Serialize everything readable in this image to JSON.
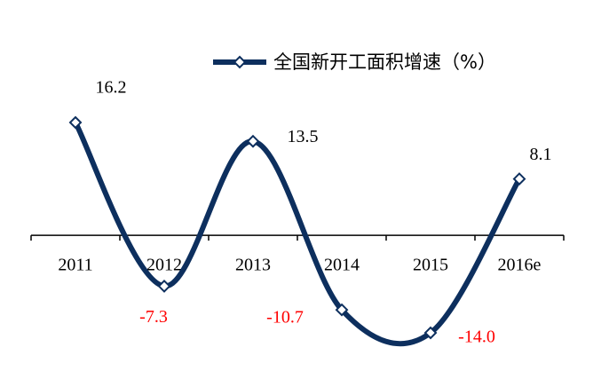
{
  "chart_data": {
    "type": "line",
    "categories": [
      "2011",
      "2012",
      "2013",
      "2014",
      "2015",
      "2016e"
    ],
    "series": [
      {
        "name": "全国新开工面积增速（%）",
        "color": "#0d2f5e",
        "values": [
          16.2,
          -7.3,
          13.5,
          -10.7,
          -14.0,
          8.1
        ],
        "value_labels": [
          "16.2",
          "-7.3",
          "13.5",
          "-10.7",
          "-14.0",
          "8.1"
        ]
      }
    ],
    "negative_label_color": "#ff0000",
    "positive_label_color": "#000000",
    "smooth": true,
    "markers": "diamond"
  }
}
